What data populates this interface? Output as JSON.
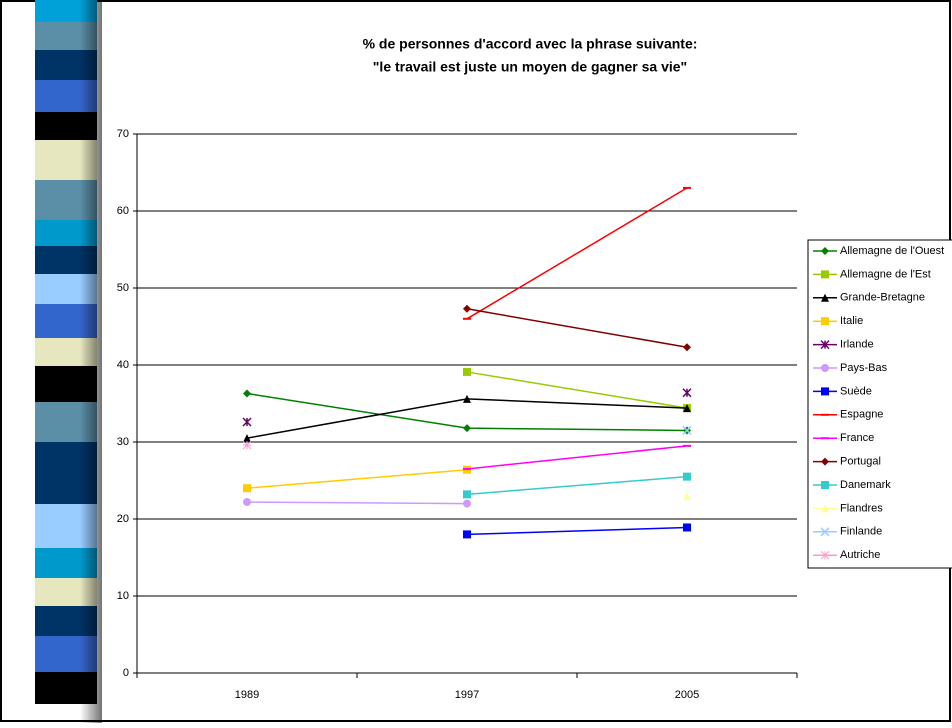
{
  "chart_data": {
    "type": "line",
    "title": "% de personnes d'accord avec la phrase suivante:",
    "subtitle": "\"le travail est juste un moyen de gagner sa vie\"",
    "categories": [
      "1989",
      "1997",
      "2005"
    ],
    "ylim": [
      0,
      70
    ],
    "yticks": [
      0,
      10,
      20,
      30,
      40,
      50,
      60,
      70
    ],
    "grid": true,
    "legend": "right",
    "series": [
      {
        "name": "Allemagne de l'Ouest",
        "color": "#008000",
        "marker": "diamond",
        "values": [
          36.3,
          31.8,
          31.5
        ]
      },
      {
        "name": "Allemagne de l'Est",
        "color": "#99cc00",
        "marker": "square",
        "values": [
          null,
          39.1,
          34.4
        ]
      },
      {
        "name": "Grande-Bretagne",
        "color": "#000000",
        "marker": "triangle",
        "values": [
          30.5,
          35.6,
          34.4
        ]
      },
      {
        "name": "Italie",
        "color": "#ffcc00",
        "marker": "square",
        "values": [
          24.0,
          26.4,
          null
        ]
      },
      {
        "name": "Irlande",
        "color": "#660066",
        "marker": "star",
        "values": [
          32.6,
          null,
          36.4
        ]
      },
      {
        "name": "Pays-Bas",
        "color": "#cc99ff",
        "marker": "circle",
        "values": [
          22.2,
          22.0,
          null
        ]
      },
      {
        "name": "Suède",
        "color": "#0000ff",
        "marker": "square",
        "values": [
          null,
          18.0,
          18.9
        ]
      },
      {
        "name": "Espagne",
        "color": "#ff0000",
        "marker": "dash",
        "values": [
          null,
          46.0,
          63.0
        ]
      },
      {
        "name": "France",
        "color": "#ff00ff",
        "marker": "dash",
        "values": [
          null,
          26.5,
          29.5
        ]
      },
      {
        "name": "Portugal",
        "color": "#800000",
        "marker": "diamond",
        "values": [
          null,
          47.3,
          42.3
        ]
      },
      {
        "name": "Danemark",
        "color": "#33cccc",
        "marker": "square",
        "values": [
          null,
          23.2,
          25.5
        ]
      },
      {
        "name": "Flandres",
        "color": "#ffff99",
        "marker": "triangle",
        "values": [
          null,
          null,
          23.0
        ]
      },
      {
        "name": "Finlande",
        "color": "#99ccff",
        "marker": "x",
        "values": [
          null,
          null,
          31.5
        ]
      },
      {
        "name": "Autriche",
        "color": "#ff99cc",
        "marker": "asterisk",
        "values": [
          29.6,
          null,
          null
        ]
      }
    ]
  }
}
